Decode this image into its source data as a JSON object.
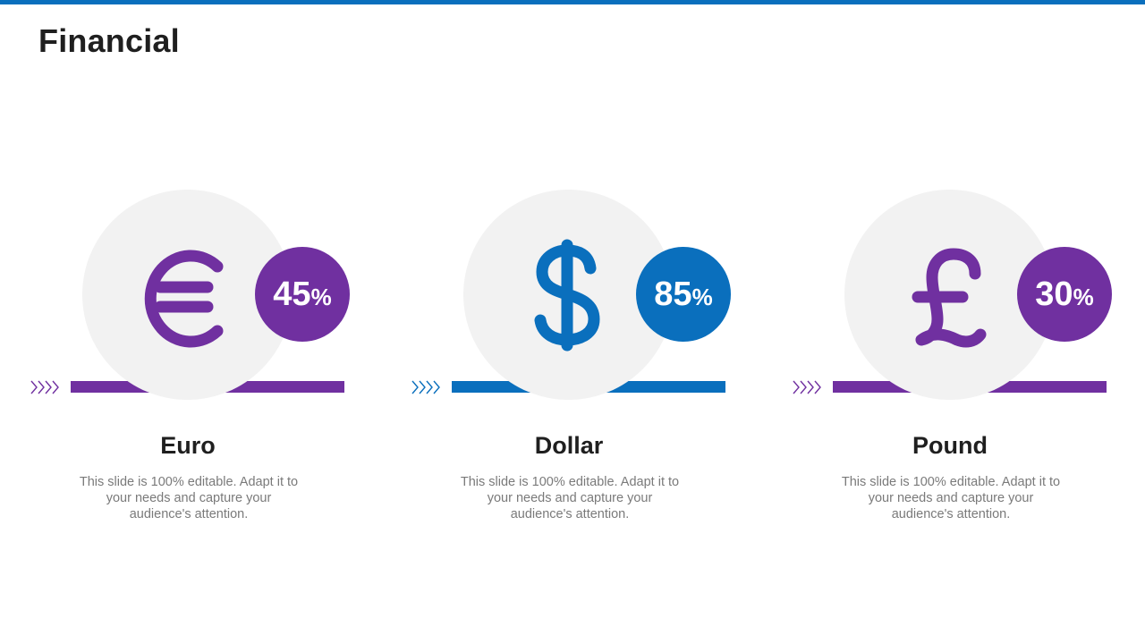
{
  "title": "Financial",
  "colors": {
    "purple": "#7030a0",
    "blue": "#0a6fbd",
    "circle_bg": "#f2f2f2"
  },
  "cards": [
    {
      "name": "Euro",
      "icon": "euro-icon",
      "percent_value": "45",
      "percent_unit": "%",
      "description": "This slide is 100% editable. Adapt it to your needs and capture your audience's attention.",
      "accent": "#7030a0"
    },
    {
      "name": "Dollar",
      "icon": "dollar-icon",
      "percent_value": "85",
      "percent_unit": "%",
      "description": "This slide is 100% editable. Adapt it to your needs and capture your audience's attention.",
      "accent": "#0a6fbd"
    },
    {
      "name": "Pound",
      "icon": "pound-icon",
      "percent_value": "30",
      "percent_unit": "%",
      "description": "This slide is 100% editable. Adapt it to your needs and capture your audience's attention.",
      "accent": "#7030a0"
    }
  ]
}
